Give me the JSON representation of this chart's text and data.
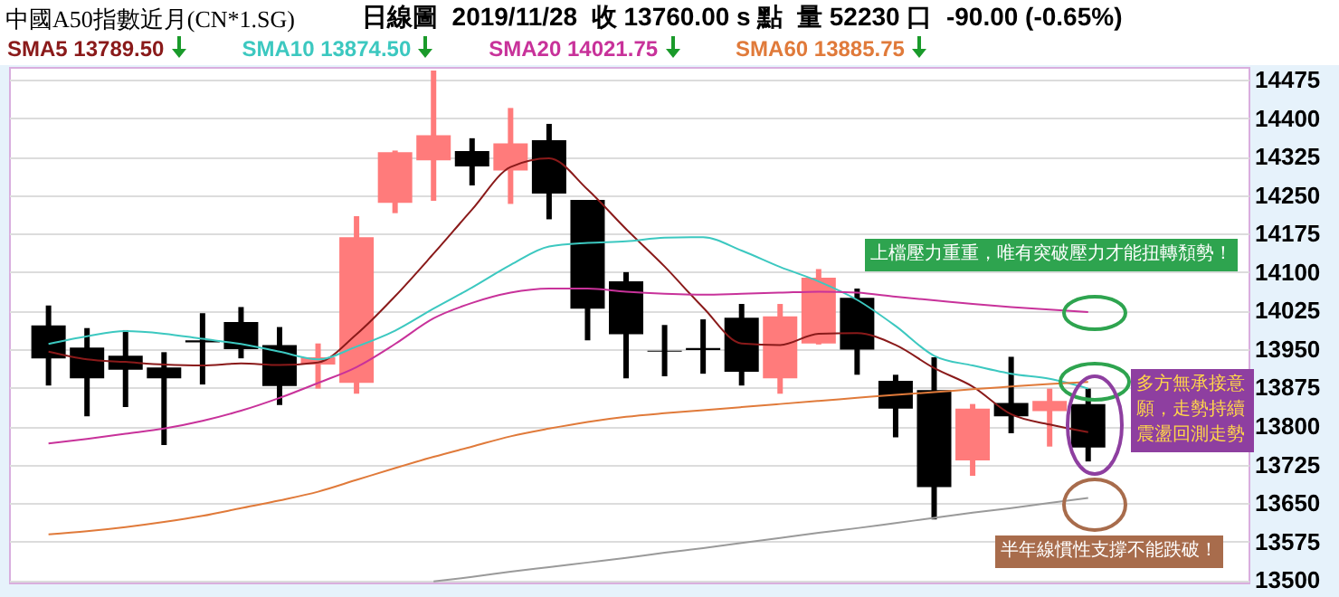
{
  "chart_data": {
    "type": "candlestick",
    "title": "中國A50指數近月(CN*1.SG)",
    "subtitle": "日線圖  2019/11/28  收 13760.00 s 點  量 52230 口  -90.00 (-0.65%)",
    "categories": [
      null,
      null,
      null,
      null,
      null,
      null,
      null,
      null,
      null,
      null,
      null,
      null,
      null,
      null,
      null,
      null,
      null,
      null,
      null,
      null,
      null,
      null,
      null,
      null,
      null,
      null,
      null,
      null
    ],
    "ohlc": [
      [
        13996,
        14035,
        13879,
        13932
      ],
      [
        13953,
        13991,
        13819,
        13893
      ],
      [
        13937,
        13987,
        13837,
        13910
      ],
      [
        13914,
        13944,
        13763,
        13893
      ],
      [
        13967,
        14020,
        13881,
        13963
      ],
      [
        14003,
        14032,
        13932,
        13950
      ],
      [
        13958,
        13993,
        13841,
        13878
      ],
      [
        13920,
        13961,
        13873,
        13934
      ],
      [
        13884,
        14209,
        13863,
        14168
      ],
      [
        14235,
        14337,
        14215,
        14334
      ],
      [
        14318,
        14493,
        14239,
        14367
      ],
      [
        14336,
        14361,
        14269,
        14306
      ],
      [
        14298,
        14420,
        14233,
        14351
      ],
      [
        14357,
        14389,
        14203,
        14253
      ],
      [
        14241,
        14241,
        13967,
        14029
      ],
      [
        14082,
        14100,
        13893,
        13979
      ],
      [
        13947,
        13997,
        13897,
        13945
      ],
      [
        13952,
        14008,
        13902,
        13948
      ],
      [
        14011,
        14038,
        13879,
        13906
      ],
      [
        13893,
        14038,
        13863,
        14014
      ],
      [
        13961,
        14106,
        13959,
        14089
      ],
      [
        14050,
        14068,
        13900,
        13949
      ],
      [
        13888,
        13900,
        13778,
        13834
      ],
      [
        13870,
        13934,
        13618,
        13681
      ],
      [
        13733,
        13843,
        13703,
        13834
      ],
      [
        13845,
        13935,
        13786,
        13819
      ],
      [
        13829,
        13873,
        13760,
        13849
      ],
      [
        13843,
        13873,
        13731,
        13758
      ]
    ],
    "colors": [
      "#000000",
      "#000000",
      "#000000",
      "#000000",
      "#000000",
      "#000000",
      "#000000",
      "#ff7b7b",
      "#ff7b7b",
      "#ff7b7b",
      "#ff7b7b",
      "#000000",
      "#ff7b7b",
      "#000000",
      "#000000",
      "#000000",
      "#000000",
      "#000000",
      "#000000",
      "#ff7b7b",
      "#ff7b7b",
      "#000000",
      "#000000",
      "#000000",
      "#ff7b7b",
      "#000000",
      "#ff7b7b",
      "#000000"
    ],
    "series": [
      {
        "type": "line",
        "name": "SMA5 13789.50",
        "color": "#8a1a1a",
        "values": [
          13945,
          13930,
          13925,
          13920,
          13918,
          13922,
          13919,
          13924,
          13979,
          14053,
          14136,
          14222,
          14305,
          14322,
          14261,
          14184,
          14111,
          14031,
          13961,
          13958,
          13980,
          13981,
          13958,
          13913,
          13877,
          13823,
          13803,
          13788
        ]
      },
      {
        "type": "line",
        "name": "SMA10 13874.50",
        "color": "#3cc8c0",
        "values": [
          13960,
          13975,
          13985,
          13980,
          13970,
          13960,
          13945,
          13930,
          13955,
          13986,
          14029,
          14070,
          14114,
          14150,
          14157,
          14160,
          14167,
          14168,
          14142,
          14110,
          14082,
          14046,
          13995,
          13937,
          13918,
          13902,
          13892,
          13873
        ]
      },
      {
        "type": "line",
        "name": "SMA20 14021.75",
        "color": "#c8329a",
        "values": [
          13766,
          13775,
          13785,
          13795,
          13810,
          13830,
          13855,
          13884,
          13915,
          13960,
          14010,
          14040,
          14060,
          14068,
          14068,
          14062,
          14058,
          14056,
          14058,
          14060,
          14062,
          14060,
          14052,
          14045,
          14038,
          14032,
          14027,
          14022
        ]
      },
      {
        "type": "line",
        "name": "SMA60 13885.75",
        "color": "#e07a3a",
        "values": [
          13589,
          13595,
          13603,
          13613,
          13625,
          13640,
          13655,
          13672,
          13695,
          13718,
          13740,
          13760,
          13780,
          13795,
          13808,
          13818,
          13825,
          13831,
          13837,
          13843,
          13849,
          13855,
          13861,
          13866,
          13872,
          13877,
          13882,
          13886
        ]
      },
      {
        "type": "line",
        "color": "#9a9a9a",
        "values": [
          null,
          null,
          null,
          null,
          null,
          null,
          null,
          null,
          null,
          null,
          13497,
          13506,
          13516,
          13525,
          13534,
          13543,
          13553,
          13562,
          13572,
          13582,
          13592,
          13601,
          13611,
          13621,
          13631,
          13640,
          13650,
          13660
        ]
      }
    ],
    "ylim": [
      13495,
      14500
    ],
    "yticks": [
      13500,
      13575,
      13650,
      13725,
      13800,
      13875,
      13950,
      14025,
      14100,
      14175,
      14250,
      14325,
      14400,
      14475
    ],
    "grid": "y",
    "tick_labels": "y",
    "legend": "top left",
    "annotations": [
      "上檔壓力重重，唯有突破壓力才能扭轉頹勢！",
      "多方無承接意願，走勢持續震盪回測走勢",
      "半年線慣性支撐不能跌破！"
    ]
  }
}
